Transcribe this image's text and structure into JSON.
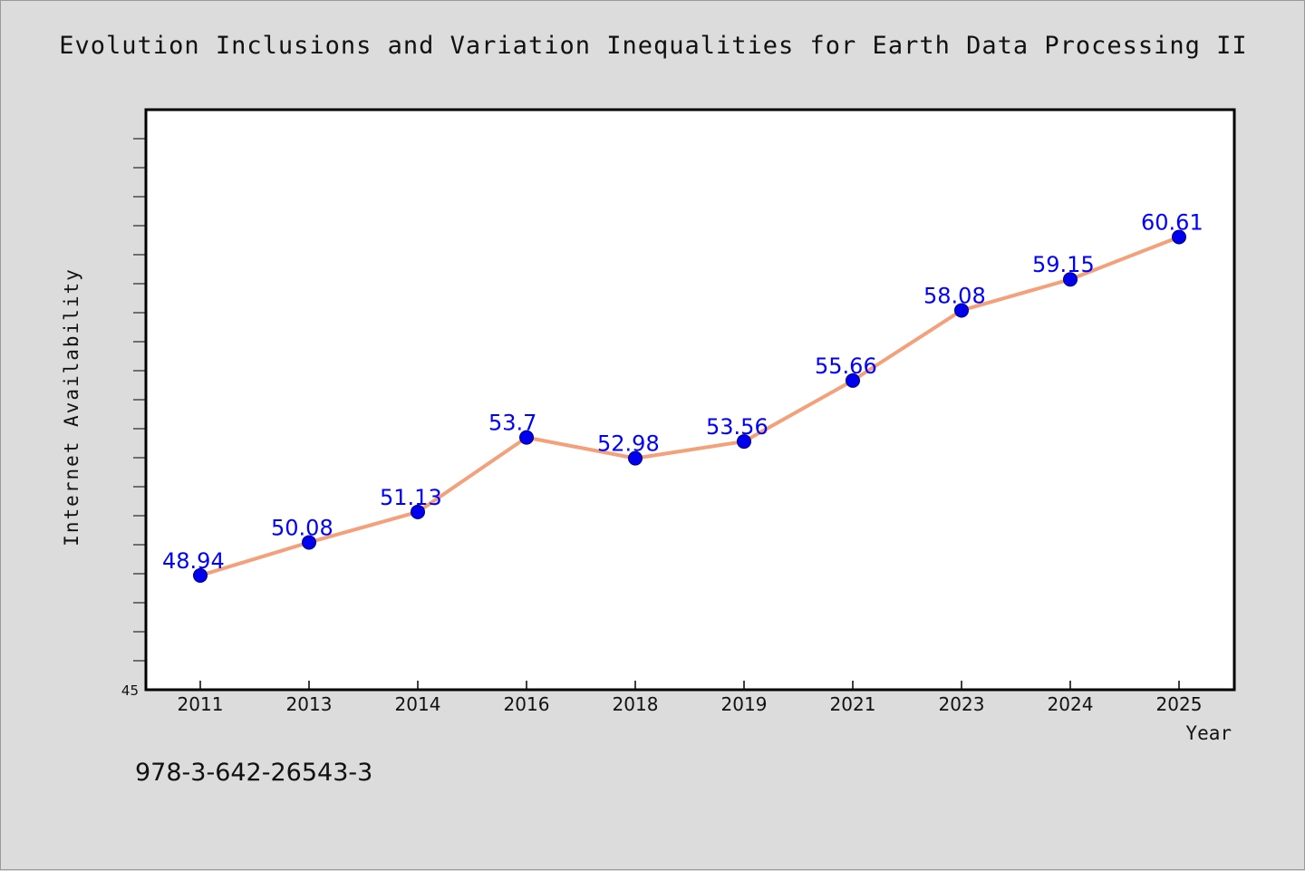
{
  "chart_data": {
    "type": "line",
    "title": "Evolution Inclusions and Variation Inequalities for Earth Data Processing II",
    "xlabel": "Year",
    "ylabel": "Internet Availability",
    "categories": [
      "2011",
      "2013",
      "2014",
      "2016",
      "2018",
      "2019",
      "2021",
      "2023",
      "2024",
      "2025"
    ],
    "series": [
      {
        "values": [
          48.94,
          50.08,
          51.13,
          53.7,
          52.98,
          53.56,
          55.66,
          58.08,
          59.15,
          60.61
        ],
        "data_labels": [
          "48.94",
          "50.08",
          "51.13",
          "53.7",
          "52.98",
          "53.56",
          "55.66",
          "58.08",
          "59.15",
          "60.61"
        ]
      }
    ],
    "ylim": [
      45,
      65
    ],
    "y_tick_labels": [
      "45"
    ],
    "line_color": "#f4a07a",
    "marker_color": "#0000ee",
    "label_color": "#0000ff",
    "grid": false,
    "legend": "none"
  },
  "footer": {
    "isbn": "978-3-642-26543-3"
  }
}
